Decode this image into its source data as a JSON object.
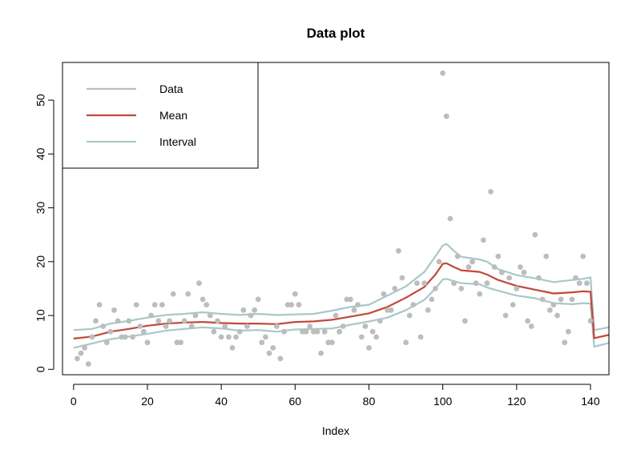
{
  "chart_data": {
    "type": "scatter",
    "title": "Data plot",
    "xlabel": "Index",
    "ylabel": "",
    "xlim": [
      -3,
      145
    ],
    "ylim": [
      -1,
      57
    ],
    "x_ticks": [
      0,
      20,
      40,
      60,
      80,
      100,
      120,
      140
    ],
    "y_ticks": [
      0,
      10,
      20,
      30,
      40,
      50
    ],
    "legend": {
      "position": "top-left",
      "entries": [
        {
          "label": "Data",
          "color": "#bdbdbd"
        },
        {
          "label": "Mean",
          "color": "#c0483a"
        },
        {
          "label": "Interval",
          "color": "#a9c7c9"
        }
      ]
    },
    "series": [
      {
        "name": "Data",
        "kind": "points",
        "color": "#bdbdbd",
        "x": [
          1,
          2,
          3,
          4,
          5,
          6,
          7,
          8,
          9,
          10,
          11,
          12,
          13,
          14,
          15,
          16,
          17,
          18,
          19,
          20,
          21,
          22,
          23,
          24,
          25,
          26,
          27,
          28,
          29,
          30,
          31,
          32,
          33,
          34,
          35,
          36,
          37,
          38,
          39,
          40,
          41,
          42,
          43,
          44,
          45,
          46,
          47,
          48,
          49,
          50,
          51,
          52,
          53,
          54,
          55,
          56,
          57,
          58,
          59,
          60,
          61,
          62,
          63,
          64,
          65,
          66,
          67,
          68,
          69,
          70,
          71,
          72,
          73,
          74,
          75,
          76,
          77,
          78,
          79,
          80,
          81,
          82,
          83,
          84,
          85,
          86,
          87,
          88,
          89,
          90,
          91,
          92,
          93,
          94,
          95,
          96,
          97,
          98,
          99,
          100,
          101,
          102,
          103,
          104,
          105,
          106,
          107,
          108,
          109,
          110,
          111,
          112,
          113,
          114,
          115,
          116,
          117,
          118,
          119,
          120,
          121,
          122,
          123,
          124,
          125,
          126,
          127,
          128,
          129,
          130,
          131,
          132,
          133,
          134,
          135,
          136,
          137,
          138,
          139,
          140
        ],
        "y": [
          2,
          3,
          4,
          1,
          6,
          9,
          12,
          8,
          5,
          7,
          11,
          9,
          6,
          6,
          9,
          6,
          12,
          8,
          7,
          5,
          10,
          12,
          9,
          12,
          8,
          9,
          14,
          5,
          5,
          9,
          14,
          8,
          10,
          16,
          13,
          12,
          10,
          7,
          9,
          6,
          8,
          6,
          4,
          6,
          7,
          11,
          8,
          10,
          11,
          13,
          5,
          6,
          3,
          4,
          8,
          2,
          7,
          12,
          12,
          14,
          12,
          7,
          7,
          8,
          7,
          7,
          3,
          7,
          5,
          5,
          10,
          7,
          8,
          13,
          13,
          11,
          12,
          6,
          8,
          4,
          7,
          6,
          9,
          14,
          11,
          11,
          15,
          22,
          17,
          5,
          10,
          12,
          16,
          6,
          16,
          11,
          13,
          15,
          20,
          55,
          47,
          28,
          16,
          21,
          15,
          9,
          19,
          20,
          16,
          14,
          24,
          16,
          33,
          19,
          21,
          18,
          10,
          17,
          12,
          15,
          19,
          18,
          9,
          8,
          25,
          17,
          13,
          21,
          11,
          12,
          10,
          13,
          5,
          7,
          13,
          17,
          16,
          21,
          16,
          9
        ]
      },
      {
        "name": "Mean",
        "kind": "line",
        "color": "#c0483a",
        "x": [
          0,
          5,
          10,
          15,
          20,
          25,
          30,
          35,
          40,
          45,
          50,
          55,
          60,
          65,
          70,
          75,
          80,
          85,
          90,
          95,
          98,
          100,
          101,
          103,
          105,
          110,
          112,
          115,
          120,
          125,
          130,
          135,
          138,
          140,
          141,
          145
        ],
        "y": [
          5.7,
          6.1,
          7.0,
          7.5,
          8.1,
          8.5,
          8.7,
          8.8,
          8.6,
          8.5,
          8.5,
          8.4,
          8.8,
          8.9,
          9.2,
          9.8,
          10.4,
          11.6,
          13.3,
          15.3,
          17.6,
          19.6,
          19.7,
          19.0,
          18.4,
          18.1,
          17.6,
          16.6,
          15.5,
          14.8,
          14.1,
          14.3,
          14.5,
          14.4,
          5.8,
          6.4
        ]
      },
      {
        "name": "Interval upper",
        "kind": "line",
        "color": "#a9c7c9",
        "x": [
          0,
          5,
          10,
          15,
          20,
          25,
          30,
          35,
          40,
          45,
          50,
          55,
          60,
          65,
          70,
          75,
          80,
          85,
          90,
          95,
          98,
          100,
          101,
          103,
          105,
          110,
          112,
          115,
          120,
          125,
          130,
          135,
          138,
          140,
          141,
          145
        ],
        "y": [
          7.3,
          7.5,
          8.5,
          9.0,
          9.6,
          10.1,
          10.3,
          10.6,
          10.3,
          10.1,
          10.3,
          10.1,
          10.2,
          10.3,
          10.9,
          11.6,
          12.0,
          13.7,
          15.4,
          18.1,
          21.0,
          23.0,
          23.3,
          22.0,
          20.9,
          20.4,
          20.0,
          18.6,
          17.5,
          16.9,
          16.2,
          16.6,
          16.8,
          17.1,
          7.3,
          7.8
        ]
      },
      {
        "name": "Interval lower",
        "kind": "line",
        "color": "#a9c7c9",
        "x": [
          0,
          5,
          10,
          15,
          20,
          25,
          30,
          35,
          40,
          45,
          50,
          55,
          60,
          65,
          70,
          75,
          80,
          85,
          90,
          95,
          98,
          100,
          101,
          103,
          105,
          110,
          112,
          115,
          120,
          125,
          130,
          135,
          138,
          140,
          141,
          145
        ],
        "y": [
          4.0,
          4.8,
          5.6,
          6.1,
          6.6,
          7.2,
          7.5,
          7.8,
          7.6,
          7.2,
          7.3,
          7.0,
          7.4,
          7.5,
          7.6,
          8.3,
          8.9,
          9.6,
          11.0,
          12.9,
          15.0,
          16.7,
          16.8,
          16.4,
          16.0,
          15.8,
          15.2,
          14.6,
          13.7,
          13.2,
          12.3,
          12.1,
          12.3,
          12.2,
          4.2,
          4.9
        ]
      }
    ]
  }
}
